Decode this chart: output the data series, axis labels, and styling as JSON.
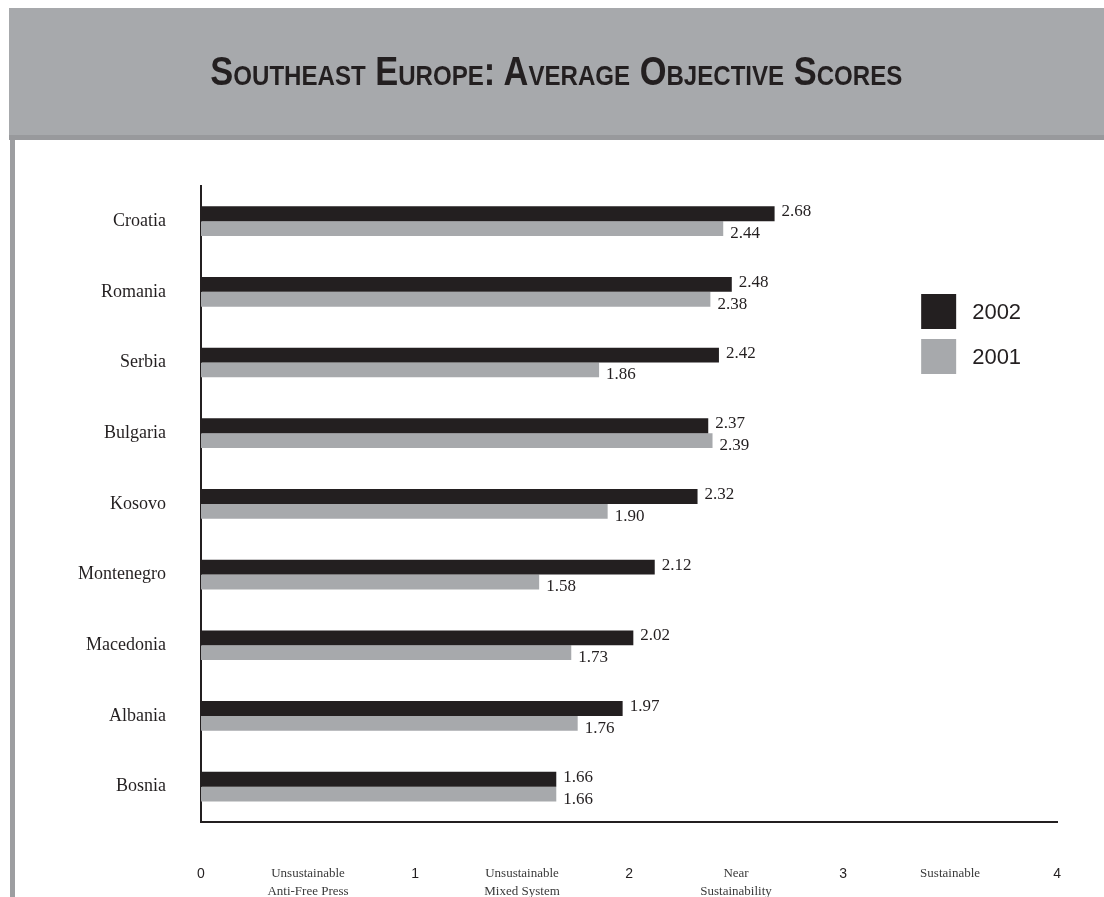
{
  "chart_data": {
    "type": "bar",
    "orientation": "horizontal",
    "title": "Southeast Europe: Average Objective Scores",
    "categories": [
      "Croatia",
      "Romania",
      "Serbia",
      "Bulgaria",
      "Kosovo",
      "Montenegro",
      "Macedonia",
      "Albania",
      "Bosnia"
    ],
    "series": [
      {
        "name": "2002",
        "color": "#231f20",
        "values": [
          2.68,
          2.48,
          2.42,
          2.37,
          2.32,
          2.12,
          2.02,
          1.97,
          1.66
        ],
        "value_labels": [
          "2.68",
          "2.48",
          "2.42",
          "2.37",
          "2.32",
          "2.12",
          "2.02",
          "1.97",
          "1.66"
        ]
      },
      {
        "name": "2001",
        "color": "#a7a9ac",
        "values": [
          2.44,
          2.38,
          1.86,
          2.39,
          1.9,
          1.58,
          1.73,
          1.76,
          1.66
        ],
        "value_labels": [
          "2.44",
          "2.38",
          "1.86",
          "2.39",
          "1.90",
          "1.58",
          "1.73",
          "1.76",
          "1.66"
        ]
      }
    ],
    "xlim": [
      0,
      4
    ],
    "xticks": [
      0,
      {
        "value": 0.5,
        "label": "Unsustainable Anti-Free Press"
      },
      1,
      {
        "value": 1.5,
        "label": "Unsustainable Mixed System"
      },
      2,
      {
        "value": 2.5,
        "label": "Near Sustainability"
      },
      3,
      {
        "value": 3.5,
        "label": "Sustainable"
      },
      4
    ],
    "legend": "top right"
  }
}
